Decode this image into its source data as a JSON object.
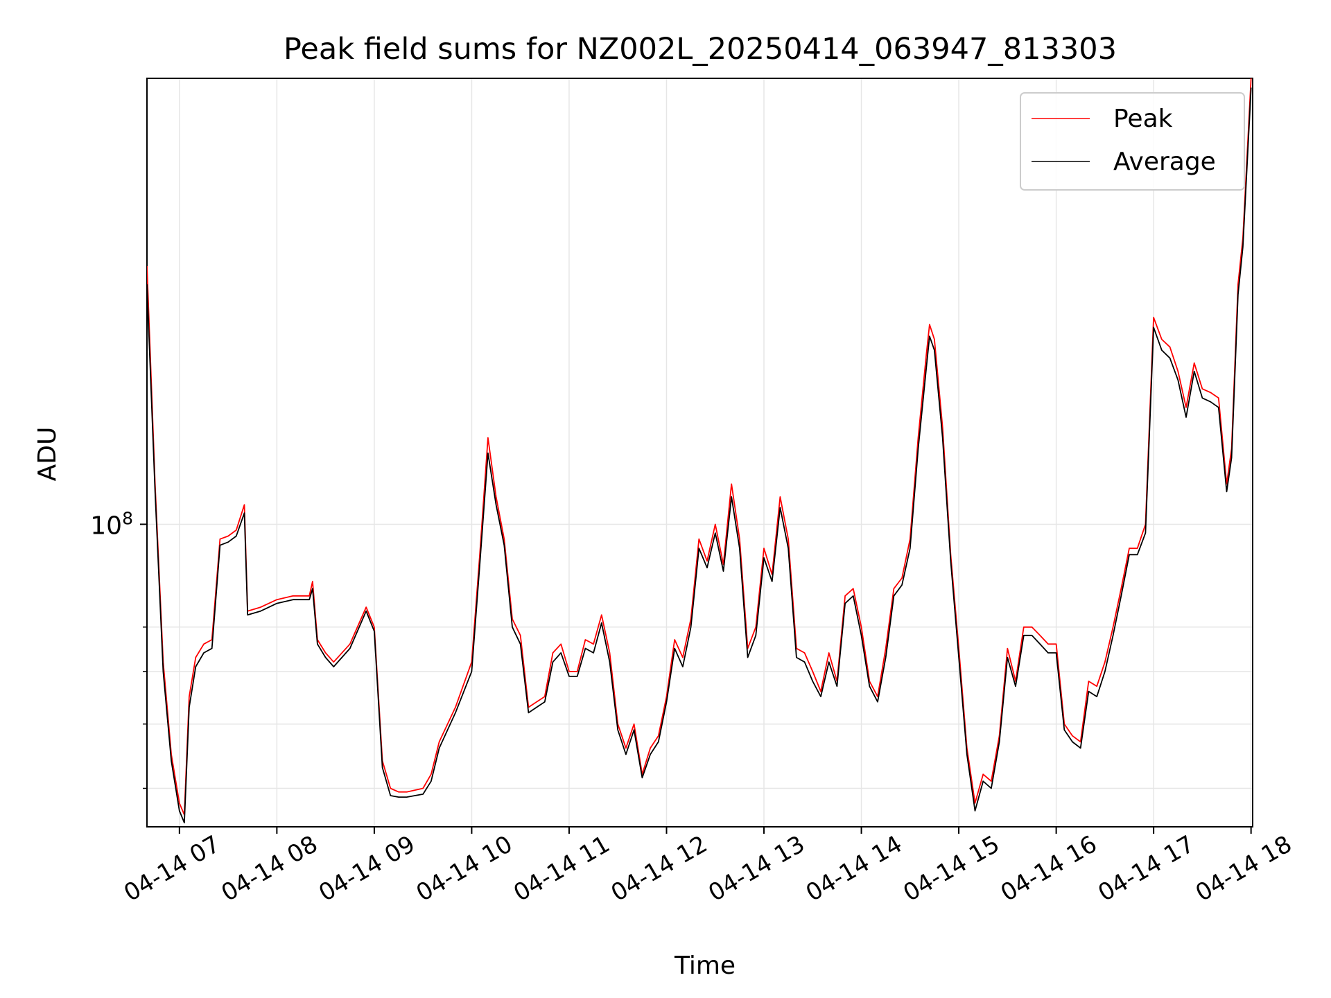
{
  "chart_data": {
    "type": "line",
    "title": "Peak field sums for NZ002L_20250414_063947_813303",
    "xlabel": "Time",
    "ylabel": "ADU",
    "x_scale": "time",
    "y_scale": "log",
    "x_range": [
      "2025-04-14 06:40",
      "2025-04-14 18:01"
    ],
    "y_range": [
      35000000,
      470000000
    ],
    "x_ticks": [
      "04-14 07",
      "04-14 08",
      "04-14 09",
      "04-14 10",
      "04-14 11",
      "04-14 12",
      "04-14 13",
      "04-14 14",
      "04-14 15",
      "04-14 16",
      "04-14 17",
      "04-14 18"
    ],
    "x_tick_times": [
      "2025-04-14 07:00",
      "2025-04-14 08:00",
      "2025-04-14 09:00",
      "2025-04-14 10:00",
      "2025-04-14 11:00",
      "2025-04-14 12:00",
      "2025-04-14 13:00",
      "2025-04-14 14:00",
      "2025-04-14 15:00",
      "2025-04-14 16:00",
      "2025-04-14 17:00",
      "2025-04-14 18:00"
    ],
    "y_major_ticks": [
      {
        "label": "10^8",
        "base": "10",
        "exp": "8",
        "value": 100000000
      }
    ],
    "y_minor_ticks": [
      40000000,
      50000000,
      60000000,
      70000000
    ],
    "grid": true,
    "legend_position": "top-right",
    "series": [
      {
        "name": "Peak",
        "color": "#ff0000",
        "points": [
          [
            "06:40",
            245000000
          ],
          [
            "06:45",
            115000000
          ],
          [
            "06:50",
            62000000
          ],
          [
            "06:55",
            45000000
          ],
          [
            "07:00",
            38000000
          ],
          [
            "07:03",
            36500000
          ],
          [
            "07:06",
            55000000
          ],
          [
            "07:10",
            63000000
          ],
          [
            "07:15",
            66000000
          ],
          [
            "07:20",
            67000000
          ],
          [
            "07:25",
            95000000
          ],
          [
            "07:30",
            96000000
          ],
          [
            "07:35",
            98000000
          ],
          [
            "07:40",
            107000000
          ],
          [
            "07:42",
            74000000
          ],
          [
            "07:50",
            75000000
          ],
          [
            "08:00",
            77000000
          ],
          [
            "08:10",
            78000000
          ],
          [
            "08:20",
            78000000
          ],
          [
            "08:22",
            82000000
          ],
          [
            "08:25",
            67000000
          ],
          [
            "08:30",
            64000000
          ],
          [
            "08:35",
            62000000
          ],
          [
            "08:45",
            66000000
          ],
          [
            "08:55",
            75000000
          ],
          [
            "09:00",
            70000000
          ],
          [
            "09:05",
            44000000
          ],
          [
            "09:10",
            40000000
          ],
          [
            "09:15",
            39500000
          ],
          [
            "09:20",
            39500000
          ],
          [
            "09:30",
            40000000
          ],
          [
            "09:35",
            42000000
          ],
          [
            "09:40",
            47000000
          ],
          [
            "09:50",
            53000000
          ],
          [
            "10:00",
            62000000
          ],
          [
            "10:05",
            90000000
          ],
          [
            "10:10",
            135000000
          ],
          [
            "10:15",
            110000000
          ],
          [
            "10:20",
            95000000
          ],
          [
            "10:25",
            72000000
          ],
          [
            "10:30",
            68000000
          ],
          [
            "10:35",
            53000000
          ],
          [
            "10:40",
            54000000
          ],
          [
            "10:45",
            55000000
          ],
          [
            "10:50",
            64000000
          ],
          [
            "10:55",
            66000000
          ],
          [
            "11:00",
            60000000
          ],
          [
            "11:05",
            60000000
          ],
          [
            "11:10",
            67000000
          ],
          [
            "11:15",
            66000000
          ],
          [
            "11:20",
            73000000
          ],
          [
            "11:25",
            64000000
          ],
          [
            "11:30",
            50000000
          ],
          [
            "11:35",
            46000000
          ],
          [
            "11:40",
            50000000
          ],
          [
            "11:45",
            42000000
          ],
          [
            "11:50",
            46000000
          ],
          [
            "11:55",
            48000000
          ],
          [
            "12:00",
            55000000
          ],
          [
            "12:05",
            67000000
          ],
          [
            "12:10",
            63000000
          ],
          [
            "12:15",
            72000000
          ],
          [
            "12:20",
            95000000
          ],
          [
            "12:25",
            88000000
          ],
          [
            "12:30",
            100000000
          ],
          [
            "12:35",
            87000000
          ],
          [
            "12:40",
            115000000
          ],
          [
            "12:45",
            95000000
          ],
          [
            "12:50",
            65000000
          ],
          [
            "12:55",
            70000000
          ],
          [
            "13:00",
            92000000
          ],
          [
            "13:05",
            84000000
          ],
          [
            "13:10",
            110000000
          ],
          [
            "13:15",
            95000000
          ],
          [
            "13:20",
            65000000
          ],
          [
            "13:25",
            64000000
          ],
          [
            "13:30",
            60000000
          ],
          [
            "13:35",
            56000000
          ],
          [
            "13:40",
            64000000
          ],
          [
            "13:45",
            58000000
          ],
          [
            "13:50",
            78000000
          ],
          [
            "13:55",
            80000000
          ],
          [
            "14:00",
            70000000
          ],
          [
            "14:05",
            58000000
          ],
          [
            "14:10",
            55000000
          ],
          [
            "14:15",
            65000000
          ],
          [
            "14:20",
            80000000
          ],
          [
            "14:25",
            83000000
          ],
          [
            "14:30",
            95000000
          ],
          [
            "14:35",
            135000000
          ],
          [
            "14:40",
            180000000
          ],
          [
            "14:42",
            200000000
          ],
          [
            "14:45",
            190000000
          ],
          [
            "14:50",
            140000000
          ],
          [
            "14:55",
            90000000
          ],
          [
            "15:00",
            65000000
          ],
          [
            "15:05",
            46000000
          ],
          [
            "15:10",
            38000000
          ],
          [
            "15:15",
            42000000
          ],
          [
            "15:20",
            41000000
          ],
          [
            "15:25",
            48000000
          ],
          [
            "15:30",
            65000000
          ],
          [
            "15:35",
            58000000
          ],
          [
            "15:40",
            70000000
          ],
          [
            "15:45",
            70000000
          ],
          [
            "15:50",
            68000000
          ],
          [
            "15:55",
            66000000
          ],
          [
            "16:00",
            66000000
          ],
          [
            "16:05",
            50000000
          ],
          [
            "16:10",
            48000000
          ],
          [
            "16:15",
            47000000
          ],
          [
            "16:20",
            58000000
          ],
          [
            "16:25",
            57000000
          ],
          [
            "16:30",
            62000000
          ],
          [
            "16:35",
            70000000
          ],
          [
            "16:40",
            80000000
          ],
          [
            "16:45",
            92000000
          ],
          [
            "16:50",
            92000000
          ],
          [
            "16:55",
            100000000
          ],
          [
            "17:00",
            205000000
          ],
          [
            "17:05",
            190000000
          ],
          [
            "17:10",
            185000000
          ],
          [
            "17:15",
            170000000
          ],
          [
            "17:20",
            150000000
          ],
          [
            "17:25",
            175000000
          ],
          [
            "17:30",
            160000000
          ],
          [
            "17:35",
            158000000
          ],
          [
            "17:40",
            155000000
          ],
          [
            "17:45",
            115000000
          ],
          [
            "17:48",
            130000000
          ],
          [
            "17:52",
            230000000
          ],
          [
            "17:55",
            270000000
          ],
          [
            "18:00",
            470000000
          ]
        ]
      },
      {
        "name": "Average",
        "color": "#000000",
        "points": [
          [
            "06:40",
            230000000
          ],
          [
            "06:45",
            112000000
          ],
          [
            "06:50",
            60000000
          ],
          [
            "06:55",
            44000000
          ],
          [
            "07:00",
            37000000
          ],
          [
            "07:03",
            35500000
          ],
          [
            "07:06",
            53000000
          ],
          [
            "07:10",
            61000000
          ],
          [
            "07:15",
            64000000
          ],
          [
            "07:20",
            65000000
          ],
          [
            "07:25",
            93000000
          ],
          [
            "07:30",
            94000000
          ],
          [
            "07:35",
            96000000
          ],
          [
            "07:40",
            104000000
          ],
          [
            "07:42",
            73000000
          ],
          [
            "07:50",
            74000000
          ],
          [
            "08:00",
            76000000
          ],
          [
            "08:10",
            77000000
          ],
          [
            "08:20",
            77000000
          ],
          [
            "08:22",
            80000000
          ],
          [
            "08:25",
            66000000
          ],
          [
            "08:30",
            63000000
          ],
          [
            "08:35",
            61000000
          ],
          [
            "08:45",
            65000000
          ],
          [
            "08:55",
            74000000
          ],
          [
            "09:00",
            69000000
          ],
          [
            "09:05",
            43000000
          ],
          [
            "09:10",
            39000000
          ],
          [
            "09:15",
            38800000
          ],
          [
            "09:20",
            38800000
          ],
          [
            "09:30",
            39200000
          ],
          [
            "09:35",
            41000000
          ],
          [
            "09:40",
            46000000
          ],
          [
            "09:50",
            52000000
          ],
          [
            "10:00",
            60000000
          ],
          [
            "10:05",
            87000000
          ],
          [
            "10:10",
            128000000
          ],
          [
            "10:15",
            107000000
          ],
          [
            "10:20",
            93000000
          ],
          [
            "10:25",
            70000000
          ],
          [
            "10:30",
            66000000
          ],
          [
            "10:35",
            52000000
          ],
          [
            "10:40",
            53000000
          ],
          [
            "10:45",
            54000000
          ],
          [
            "10:50",
            62000000
          ],
          [
            "10:55",
            64000000
          ],
          [
            "11:00",
            59000000
          ],
          [
            "11:05",
            59000000
          ],
          [
            "11:10",
            65000000
          ],
          [
            "11:15",
            64000000
          ],
          [
            "11:20",
            71000000
          ],
          [
            "11:25",
            62000000
          ],
          [
            "11:30",
            49000000
          ],
          [
            "11:35",
            45000000
          ],
          [
            "11:40",
            49000000
          ],
          [
            "11:45",
            41500000
          ],
          [
            "11:50",
            45000000
          ],
          [
            "11:55",
            47000000
          ],
          [
            "12:00",
            54000000
          ],
          [
            "12:05",
            65000000
          ],
          [
            "12:10",
            61000000
          ],
          [
            "12:15",
            70000000
          ],
          [
            "12:20",
            92000000
          ],
          [
            "12:25",
            86000000
          ],
          [
            "12:30",
            97000000
          ],
          [
            "12:35",
            85000000
          ],
          [
            "12:40",
            110000000
          ],
          [
            "12:45",
            92000000
          ],
          [
            "12:50",
            63000000
          ],
          [
            "12:55",
            68000000
          ],
          [
            "13:00",
            89000000
          ],
          [
            "13:05",
            82000000
          ],
          [
            "13:10",
            106000000
          ],
          [
            "13:15",
            92000000
          ],
          [
            "13:20",
            63000000
          ],
          [
            "13:25",
            62000000
          ],
          [
            "13:30",
            58000000
          ],
          [
            "13:35",
            55000000
          ],
          [
            "13:40",
            62000000
          ],
          [
            "13:45",
            57000000
          ],
          [
            "13:50",
            76000000
          ],
          [
            "13:55",
            78000000
          ],
          [
            "14:00",
            68000000
          ],
          [
            "14:05",
            57000000
          ],
          [
            "14:10",
            54000000
          ],
          [
            "14:15",
            63000000
          ],
          [
            "14:20",
            78000000
          ],
          [
            "14:25",
            81000000
          ],
          [
            "14:30",
            92000000
          ],
          [
            "14:35",
            130000000
          ],
          [
            "14:40",
            172000000
          ],
          [
            "14:42",
            192000000
          ],
          [
            "14:45",
            183000000
          ],
          [
            "14:50",
            135000000
          ],
          [
            "14:55",
            88000000
          ],
          [
            "15:00",
            63000000
          ],
          [
            "15:05",
            45000000
          ],
          [
            "15:10",
            37000000
          ],
          [
            "15:15",
            41000000
          ],
          [
            "15:20",
            40000000
          ],
          [
            "15:25",
            47000000
          ],
          [
            "15:30",
            63000000
          ],
          [
            "15:35",
            57000000
          ],
          [
            "15:40",
            68000000
          ],
          [
            "15:45",
            68000000
          ],
          [
            "15:50",
            66000000
          ],
          [
            "15:55",
            64000000
          ],
          [
            "16:00",
            64000000
          ],
          [
            "16:05",
            49000000
          ],
          [
            "16:10",
            47000000
          ],
          [
            "16:15",
            46000000
          ],
          [
            "16:20",
            56000000
          ],
          [
            "16:25",
            55000000
          ],
          [
            "16:30",
            60000000
          ],
          [
            "16:35",
            68000000
          ],
          [
            "16:40",
            78000000
          ],
          [
            "16:45",
            90000000
          ],
          [
            "16:50",
            90000000
          ],
          [
            "16:55",
            97000000
          ],
          [
            "17:00",
            198000000
          ],
          [
            "17:05",
            183000000
          ],
          [
            "17:10",
            178000000
          ],
          [
            "17:15",
            165000000
          ],
          [
            "17:20",
            145000000
          ],
          [
            "17:25",
            170000000
          ],
          [
            "17:30",
            155000000
          ],
          [
            "17:35",
            153000000
          ],
          [
            "17:40",
            150000000
          ],
          [
            "17:45",
            112000000
          ],
          [
            "17:48",
            126000000
          ],
          [
            "17:52",
            222000000
          ],
          [
            "17:55",
            262000000
          ],
          [
            "18:00",
            455000000
          ]
        ]
      }
    ]
  }
}
